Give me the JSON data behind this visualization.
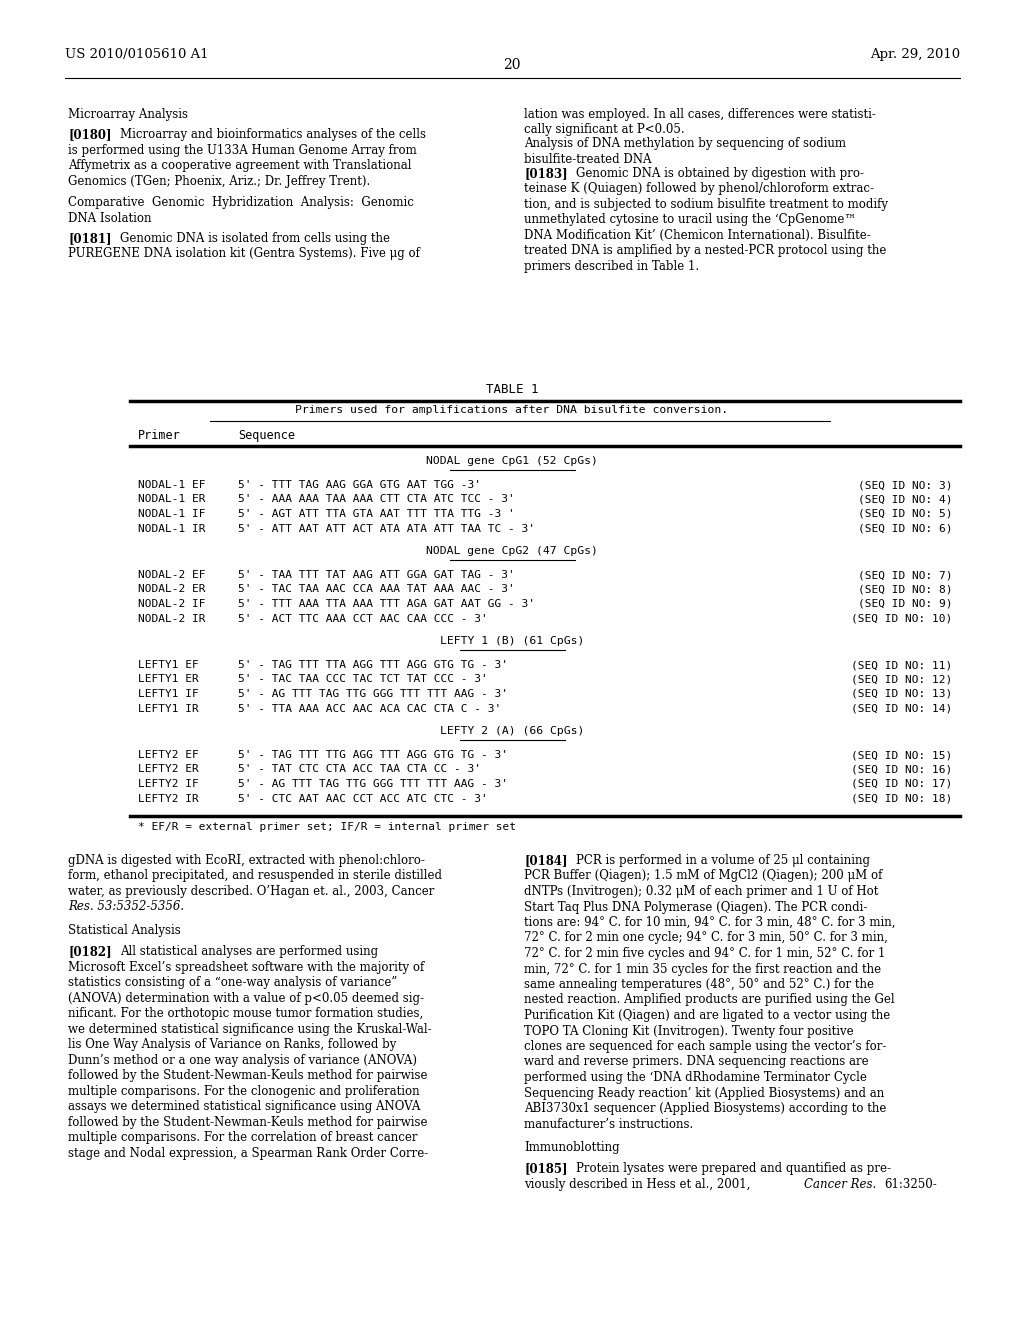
{
  "page_number": "20",
  "header_left": "US 2010/0105610 A1",
  "header_right": "Apr. 29, 2010",
  "bg_color": "#ffffff",
  "text_color": "#000000",
  "table_title": "TABLE 1",
  "table_subtitle": "Primers used for amplifications after DNA bisulfite conversion.",
  "table_footnote": "* EF/R = external primer set; IF/R = internal primer set",
  "table_sections": [
    {
      "section_title": "NODAL gene CpG1 (52 CpGs)",
      "rows": [
        [
          "NODAL-1 EF",
          "5' - TTT TAG AAG GGA GTG AAT TGG -3'",
          "(SEQ ID NO: 3)"
        ],
        [
          "NODAL-1 ER",
          "5' - AAA AAA TAA AAA CTT CTA ATC TCC - 3'",
          "(SEQ ID NO: 4)"
        ],
        [
          "NODAL-1 IF",
          "5' - AGT ATT TTA GTA AAT TTT TTA TTG -3 '",
          "(SEQ ID NO: 5)"
        ],
        [
          "NODAL-1 IR",
          "5' - ATT AAT ATT ACT ATA ATA ATT TAA TC - 3'",
          "(SEQ ID NO: 6)"
        ]
      ]
    },
    {
      "section_title": "NODAL gene CpG2 (47 CpGs)",
      "rows": [
        [
          "NODAL-2 EF",
          "5' - TAA TTT TAT AAG ATT GGA GAT TAG - 3'",
          "(SEQ ID NO: 7)"
        ],
        [
          "NODAL-2 ER",
          "5' - TAC TAA AAC CCA AAA TAT AAA AAC - 3'",
          "(SEQ ID NO: 8)"
        ],
        [
          "NODAL-2 IF",
          "5' - TTT AAA TTA AAA TTT AGA GAT AAT GG - 3'",
          "(SEQ ID NO: 9)"
        ],
        [
          "NODAL-2 IR",
          "5' - ACT TTC AAA CCT AAC CAA CCC - 3'",
          "(SEQ ID NO: 10)"
        ]
      ]
    },
    {
      "section_title": "LEFTY 1 (B) (61 CpGs)",
      "rows": [
        [
          "LEFTY1 EF",
          "5' - TAG TTT TTA AGG TTT AGG GTG TG - 3'",
          "(SEQ ID NO: 11)"
        ],
        [
          "LEFTY1 ER",
          "5' - TAC TAA CCC TAC TCT TAT CCC - 3'",
          "(SEQ ID NO: 12)"
        ],
        [
          "LEFTY1 IF",
          "5' - AG TTT TAG TTG GGG TTT TTT AAG - 3'",
          "(SEQ ID NO: 13)"
        ],
        [
          "LEFTY1 IR",
          "5' - TTA AAA ACC AAC ACA CAC CTA C - 3'",
          "(SEQ ID NO: 14)"
        ]
      ]
    },
    {
      "section_title": "LEFTY 2 (A) (66 CpGs)",
      "rows": [
        [
          "LEFTY2 EF",
          "5' - TAG TTT TTG AGG TTT AGG GTG TG - 3'",
          "(SEQ ID NO: 15)"
        ],
        [
          "LEFTY2 ER",
          "5' - TAT CTC CTA ACC TAA CTA CC - 3'",
          "(SEQ ID NO: 16)"
        ],
        [
          "LEFTY2 IF",
          "5' - AG TTT TAG TTG GGG TTT TTT AAG - 3'",
          "(SEQ ID NO: 17)"
        ],
        [
          "LEFTY2 IR",
          "5' - CTC AAT AAC CCT ACC ATC CTC - 3'",
          "(SEQ ID NO: 18)"
        ]
      ]
    }
  ],
  "left_top": [
    {
      "type": "heading",
      "text": "Microarray Analysis"
    },
    {
      "type": "body",
      "tag": "[0180]",
      "text": "Microarray and bioinformatics analyses of the cells is performed using the U133A Human Genome Array from Affymetrix as a cooperative agreement with Translational Genomics (TGen; Phoenix, Ariz.; Dr. Jeffrey Trent)."
    },
    {
      "type": "heading",
      "text": "Comparative Genomic Hybridization Analysis: Genomic DNA Isolation"
    },
    {
      "type": "body",
      "tag": "[0181]",
      "text": "Genomic DNA is isolated from cells using the PUREGENE DNA isolation kit (Gentra Systems). Five μg of"
    }
  ],
  "right_top": [
    {
      "type": "body",
      "tag": "",
      "text": "lation was employed. In all cases, differences were statisti-cally significant at P<0.05."
    },
    {
      "type": "heading",
      "text": "Analysis of DNA methylation by sequencing of sodium bisulfite-treated DNA"
    },
    {
      "type": "body",
      "tag": "[0183]",
      "text": "Genomic DNA is obtained by digestion with pro-teinase K (Quiagen) followed by phenol/chloroform extrac-tion, and is subjected to sodium bisulfite treatment to modify unmethylated cytosine to uracil using the ‘CpGenome™ DNA Modification Kit’ (Chemicon International). Bisulfite-treated DNA is amplified by a nested-PCR protocol using the primers described in Table 1."
    }
  ],
  "left_bottom": [
    {
      "type": "body",
      "tag": "",
      "text": "gDNA is digested with EcoRI, extracted with phenol:chloro-form, ethanol precipitated, and resuspended in sterile distilled water, as previously described. O’Hagan et. al., 2003, Cancer Res. 53:5352-5356."
    },
    {
      "type": "heading",
      "text": "Statistical Analysis"
    },
    {
      "type": "body",
      "tag": "[0182]",
      "text": "All statistical analyses are performed using Microsoft Excel’s spreadsheet software with the majority of statistics consisting of a “one-way analysis of variance” (ANOVA) determination with a value of p<0.05 deemed sig-nificant. For the orthotopic mouse tumor formation studies, we determined statistical significance using the Kruskal-Wal-lis One Way Analysis of Variance on Ranks, followed by Dunn’s method or a one way analysis of variance (ANOVA) followed by the Student-Newman-Keuls method for pairwise multiple comparisons. For the clonogenic and proliferation assays we determined statistical significance using ANOVA followed by the Student-Newman-Keuls method for pairwise multiple comparisons. For the correlation of breast cancer stage and Nodal expression, a Spearman Rank Order Corre-"
    }
  ],
  "right_bottom": [
    {
      "type": "body",
      "tag": "[0184]",
      "text": "PCR is performed in a volume of 25 μl containing PCR Buffer (Qiagen); 1.5 mM of MgCl2 (Qiagen); 200 μM of dNTPs (Invitrogen); 0.32 μM of each primer and 1 U of Hot Start Taq Plus DNA Polymerase (Qiagen). The PCR condi-tions are: 94° C. for 10 min, 94° C. for 3 min, 48° C. for 3 min, 72° C. for 2 min one cycle; 94° C. for 3 min, 50° C. for 3 min, 72° C. for 2 min five cycles and 94° C. for 1 min, 52° C. for 1 min, 72° C. for 1 min 35 cycles for the first reaction and the same annealing temperatures (48°, 50° and 52° C.) for the nested reaction. Amplified products are purified using the Gel Purification Kit (Qiagen) and are ligated to a vector using the TOPO TA Cloning Kit (Invitrogen). Twenty four positive clones are sequenced for each sample using the vector’s for-ward and reverse primers. DNA sequencing reactions are performed using the ‘DNA dRhodamine Terminator Cycle Sequencing Ready reaction’ kit (Applied Biosystems) and an ABI3730x1 sequencer (Applied Biosystems) according to the manufacturer’s instructions."
    },
    {
      "type": "heading",
      "text": "Immunoblotting"
    },
    {
      "type": "body",
      "tag": "[0185]",
      "text": "Protein lysates were prepared and quantified as pre-viously described in Hess et al., 2001, Cancer Res. 61:3250-"
    }
  ]
}
